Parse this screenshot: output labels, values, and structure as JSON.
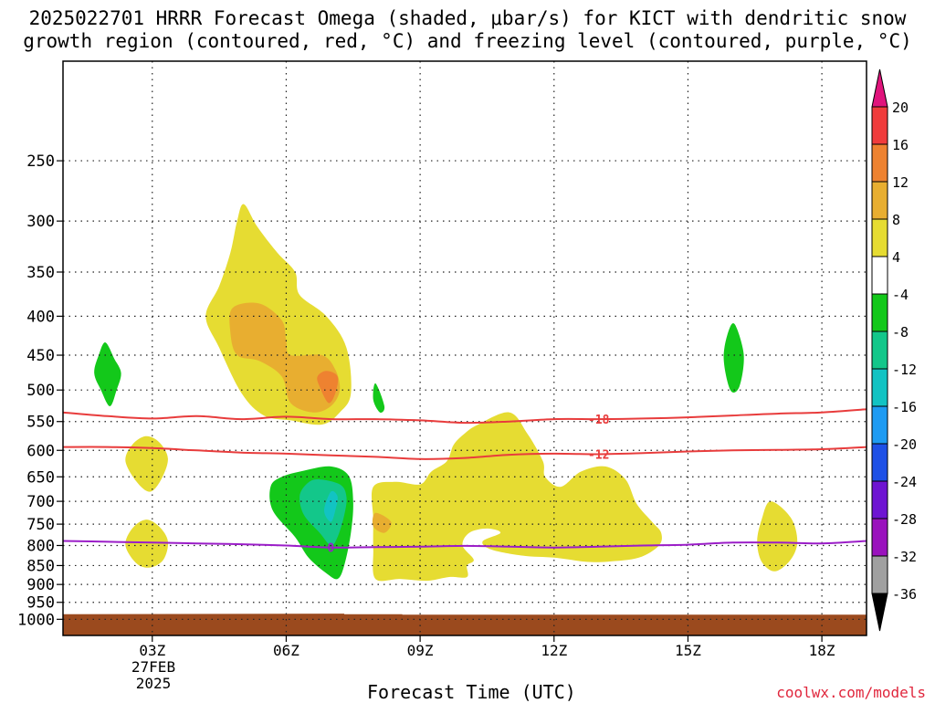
{
  "chart_data": {
    "type": "heatmap",
    "title_line1": "2025022701 HRRR Forecast Omega (shaded, μbar/s) for KICT with dendritic snow",
    "title_line2": "growth region (contoured, red, °C) and freezing level (contoured, purple, °C)",
    "xlabel": "Forecast Time (UTC)",
    "x_date_label": "27FEB",
    "x_year_label": "2025",
    "source": "coolwx.com/models",
    "x_range_hours": [
      1,
      19
    ],
    "y_range_hpa": [
      1050,
      185
    ],
    "y_scale": "log",
    "x_ticks": [
      {
        "hour": 3,
        "label": "03Z"
      },
      {
        "hour": 6,
        "label": "06Z"
      },
      {
        "hour": 9,
        "label": "09Z"
      },
      {
        "hour": 12,
        "label": "12Z"
      },
      {
        "hour": 15,
        "label": "15Z"
      },
      {
        "hour": 18,
        "label": "18Z"
      }
    ],
    "y_ticks": [
      {
        "p": 250,
        "label": "250"
      },
      {
        "p": 300,
        "label": "300"
      },
      {
        "p": 350,
        "label": "350"
      },
      {
        "p": 400,
        "label": "400"
      },
      {
        "p": 450,
        "label": "450"
      },
      {
        "p": 500,
        "label": "500"
      },
      {
        "p": 550,
        "label": "550"
      },
      {
        "p": 600,
        "label": "600"
      },
      {
        "p": 650,
        "label": "650"
      },
      {
        "p": 700,
        "label": "700"
      },
      {
        "p": 750,
        "label": "750"
      },
      {
        "p": 800,
        "label": "800"
      },
      {
        "p": 850,
        "label": "850"
      },
      {
        "p": 900,
        "label": "900"
      },
      {
        "p": 950,
        "label": "950"
      },
      {
        "p": 1000,
        "label": "1000"
      }
    ],
    "grid": "dotted",
    "colorbar": {
      "colors": [
        "#e0147c",
        "#f03c3c",
        "#ee8230",
        "#e8ae30",
        "#e6dc32",
        "#ffffff",
        "#13c81a",
        "#13c78a",
        "#12c3c3",
        "#1e9bf2",
        "#1e50e6",
        "#6e14d2",
        "#9a12bd",
        "#a0a0a0",
        "#000000"
      ],
      "labels": [
        "20",
        "16",
        "12",
        "8",
        "4",
        "-4",
        "-8",
        "-12",
        "-16",
        "-20",
        "-24",
        "-28",
        "-32",
        "-36"
      ]
    },
    "shaded_regions": [
      {
        "level": "4 to 8",
        "color": "#e6dc32",
        "points": [
          [
            5.05,
            285
          ],
          [
            5.35,
            305
          ],
          [
            5.8,
            330
          ],
          [
            6.2,
            350
          ],
          [
            6.3,
            375
          ],
          [
            6.9,
            400
          ],
          [
            7.35,
            440
          ],
          [
            7.45,
            505
          ],
          [
            7.2,
            535
          ],
          [
            6.8,
            555
          ],
          [
            6.1,
            548
          ],
          [
            5.5,
            540
          ],
          [
            5.0,
            505
          ],
          [
            4.5,
            440
          ],
          [
            4.2,
            400
          ],
          [
            4.5,
            365
          ],
          [
            4.75,
            330
          ],
          [
            4.9,
            300
          ]
        ]
      },
      {
        "level": "8 to 12",
        "color": "#e8ae30",
        "points": [
          [
            4.8,
            390
          ],
          [
            5.4,
            385
          ],
          [
            5.9,
            405
          ],
          [
            6.0,
            430
          ],
          [
            6.1,
            450
          ],
          [
            6.8,
            450
          ],
          [
            7.1,
            470
          ],
          [
            7.2,
            500
          ],
          [
            7.0,
            525
          ],
          [
            6.6,
            535
          ],
          [
            6.1,
            520
          ],
          [
            5.9,
            480
          ],
          [
            5.4,
            458
          ],
          [
            4.9,
            450
          ],
          [
            4.75,
            420
          ]
        ]
      },
      {
        "level": "12 to 16",
        "color": "#ee8230",
        "points": [
          [
            6.9,
            472
          ],
          [
            7.15,
            480
          ],
          [
            7.1,
            505
          ],
          [
            6.95,
            520
          ],
          [
            6.75,
            495
          ],
          [
            6.7,
            480
          ]
        ]
      },
      {
        "level": "4 to 8",
        "color": "#e6dc32",
        "points": [
          [
            2.85,
            575
          ],
          [
            3.15,
            585
          ],
          [
            3.35,
            615
          ],
          [
            3.2,
            655
          ],
          [
            2.95,
            680
          ],
          [
            2.65,
            660
          ],
          [
            2.4,
            620
          ],
          [
            2.55,
            590
          ]
        ]
      },
      {
        "level": "4 to 8",
        "color": "#e6dc32",
        "points": [
          [
            2.85,
            740
          ],
          [
            3.15,
            755
          ],
          [
            3.35,
            790
          ],
          [
            3.25,
            835
          ],
          [
            2.95,
            855
          ],
          [
            2.65,
            845
          ],
          [
            2.4,
            800
          ],
          [
            2.55,
            760
          ]
        ]
      },
      {
        "level": "-4 to -8",
        "color": "#13c81a",
        "points": [
          [
            1.95,
            433
          ],
          [
            2.15,
            455
          ],
          [
            2.3,
            475
          ],
          [
            2.2,
            500
          ],
          [
            2.05,
            525
          ],
          [
            1.85,
            500
          ],
          [
            1.7,
            475
          ],
          [
            1.8,
            450
          ]
        ]
      },
      {
        "level": "-4 to -8",
        "color": "#13c81a",
        "points": [
          [
            8.0,
            490
          ],
          [
            8.2,
            525
          ],
          [
            8.1,
            535
          ],
          [
            7.95,
            515
          ]
        ]
      },
      {
        "level": "-4 to -8",
        "color": "#13c81a",
        "points": [
          [
            16.05,
            410
          ],
          [
            16.25,
            450
          ],
          [
            16.15,
            495
          ],
          [
            15.95,
            500
          ],
          [
            15.8,
            455
          ],
          [
            15.9,
            420
          ]
        ]
      },
      {
        "level": "4 to 8",
        "color": "#e6dc32",
        "points": [
          [
            11.0,
            535
          ],
          [
            11.4,
            570
          ],
          [
            11.75,
            620
          ],
          [
            11.8,
            650
          ],
          [
            12.15,
            670
          ],
          [
            12.6,
            640
          ],
          [
            13.15,
            630
          ],
          [
            13.6,
            655
          ],
          [
            13.85,
            705
          ],
          [
            14.2,
            745
          ],
          [
            14.4,
            770
          ],
          [
            14.35,
            800
          ],
          [
            13.9,
            830
          ],
          [
            13.2,
            840
          ],
          [
            12.7,
            840
          ],
          [
            12.0,
            830
          ],
          [
            11.3,
            825
          ],
          [
            10.6,
            810
          ],
          [
            10.4,
            790
          ],
          [
            10.8,
            770
          ],
          [
            10.5,
            760
          ],
          [
            10.1,
            770
          ],
          [
            9.95,
            800
          ],
          [
            10.2,
            835
          ],
          [
            10.05,
            850
          ],
          [
            10.05,
            880
          ],
          [
            9.65,
            880
          ],
          [
            9.15,
            890
          ],
          [
            8.55,
            885
          ],
          [
            8.0,
            885
          ],
          [
            7.95,
            810
          ],
          [
            7.95,
            740
          ],
          [
            7.95,
            670
          ],
          [
            8.45,
            660
          ],
          [
            9.0,
            665
          ],
          [
            9.25,
            640
          ],
          [
            9.6,
            620
          ],
          [
            9.75,
            590
          ],
          [
            10.0,
            570
          ],
          [
            10.3,
            555
          ]
        ]
      },
      {
        "level": "8 to 12",
        "color": "#e8ae30",
        "points": [
          [
            8.0,
            725
          ],
          [
            8.35,
            745
          ],
          [
            8.2,
            770
          ],
          [
            7.95,
            755
          ]
        ]
      },
      {
        "level": "4 to 8",
        "color": "#e6dc32",
        "points": [
          [
            16.85,
            700
          ],
          [
            17.3,
            735
          ],
          [
            17.45,
            790
          ],
          [
            17.3,
            835
          ],
          [
            16.95,
            865
          ],
          [
            16.65,
            840
          ],
          [
            16.55,
            790
          ],
          [
            16.65,
            740
          ]
        ]
      },
      {
        "level": "-4 to -8",
        "color": "#13c81a",
        "points": [
          [
            6.4,
            638
          ],
          [
            7.0,
            630
          ],
          [
            7.4,
            648
          ],
          [
            7.5,
            700
          ],
          [
            7.45,
            770
          ],
          [
            7.3,
            850
          ],
          [
            7.15,
            885
          ],
          [
            6.9,
            870
          ],
          [
            6.5,
            830
          ],
          [
            6.2,
            780
          ],
          [
            5.7,
            720
          ],
          [
            5.65,
            670
          ],
          [
            5.9,
            650
          ]
        ]
      },
      {
        "level": "-8 to -12",
        "color": "#13c78a",
        "points": [
          [
            6.7,
            655
          ],
          [
            7.2,
            665
          ],
          [
            7.35,
            690
          ],
          [
            7.3,
            730
          ],
          [
            7.15,
            780
          ],
          [
            7.0,
            800
          ],
          [
            6.75,
            770
          ],
          [
            6.4,
            730
          ],
          [
            6.3,
            690
          ],
          [
            6.45,
            665
          ]
        ]
      },
      {
        "level": "-12 to -16",
        "color": "#12c3c3",
        "points": [
          [
            7.0,
            680
          ],
          [
            7.15,
            690
          ],
          [
            7.1,
            720
          ],
          [
            7.0,
            745
          ],
          [
            6.85,
            720
          ]
        ]
      }
    ],
    "contours": [
      {
        "value": "-18",
        "color": "#e83c3c",
        "label_at_hour": 13.0,
        "points": [
          [
            1,
            535
          ],
          [
            2,
            541
          ],
          [
            3,
            545
          ],
          [
            4,
            541
          ],
          [
            5,
            546
          ],
          [
            6,
            542
          ],
          [
            7,
            546
          ],
          [
            8,
            546
          ],
          [
            9,
            548
          ],
          [
            10,
            552
          ],
          [
            11,
            550
          ],
          [
            12,
            546
          ],
          [
            13,
            546
          ],
          [
            14,
            545
          ],
          [
            15,
            543
          ],
          [
            16,
            540
          ],
          [
            17,
            537
          ],
          [
            18,
            535
          ],
          [
            19,
            530
          ]
        ]
      },
      {
        "value": "-12",
        "color": "#e83c3c",
        "label_at_hour": 13.0,
        "points": [
          [
            1,
            594
          ],
          [
            2,
            594
          ],
          [
            3,
            596
          ],
          [
            4,
            600
          ],
          [
            5,
            604
          ],
          [
            6,
            606
          ],
          [
            7,
            609
          ],
          [
            8,
            612
          ],
          [
            9,
            616
          ],
          [
            10,
            614
          ],
          [
            11,
            608
          ],
          [
            12,
            606
          ],
          [
            13,
            607
          ],
          [
            14,
            605
          ],
          [
            15,
            602
          ],
          [
            16,
            600
          ],
          [
            17,
            599
          ],
          [
            18,
            598
          ],
          [
            19,
            594
          ]
        ]
      },
      {
        "value": "0",
        "color": "#9b1ec8",
        "label_at_hour": 7.0,
        "points": [
          [
            1,
            789
          ],
          [
            2,
            791
          ],
          [
            3,
            793
          ],
          [
            4,
            795
          ],
          [
            5,
            797
          ],
          [
            6,
            800
          ],
          [
            7,
            805
          ],
          [
            8,
            804
          ],
          [
            9,
            803
          ],
          [
            10,
            801
          ],
          [
            11,
            803
          ],
          [
            12,
            805
          ],
          [
            13,
            803
          ],
          [
            14,
            800
          ],
          [
            15,
            798
          ],
          [
            16,
            793
          ],
          [
            17,
            793
          ],
          [
            18,
            795
          ],
          [
            19,
            789
          ]
        ]
      }
    ],
    "ground": {
      "color": "#9b4a1e",
      "top_hpa": 985,
      "points": [
        [
          1,
          985
        ],
        [
          7.3,
          983
        ],
        [
          7.3,
          985
        ],
        [
          8.6,
          985
        ],
        [
          8.6,
          986
        ],
        [
          19,
          986
        ]
      ]
    }
  }
}
